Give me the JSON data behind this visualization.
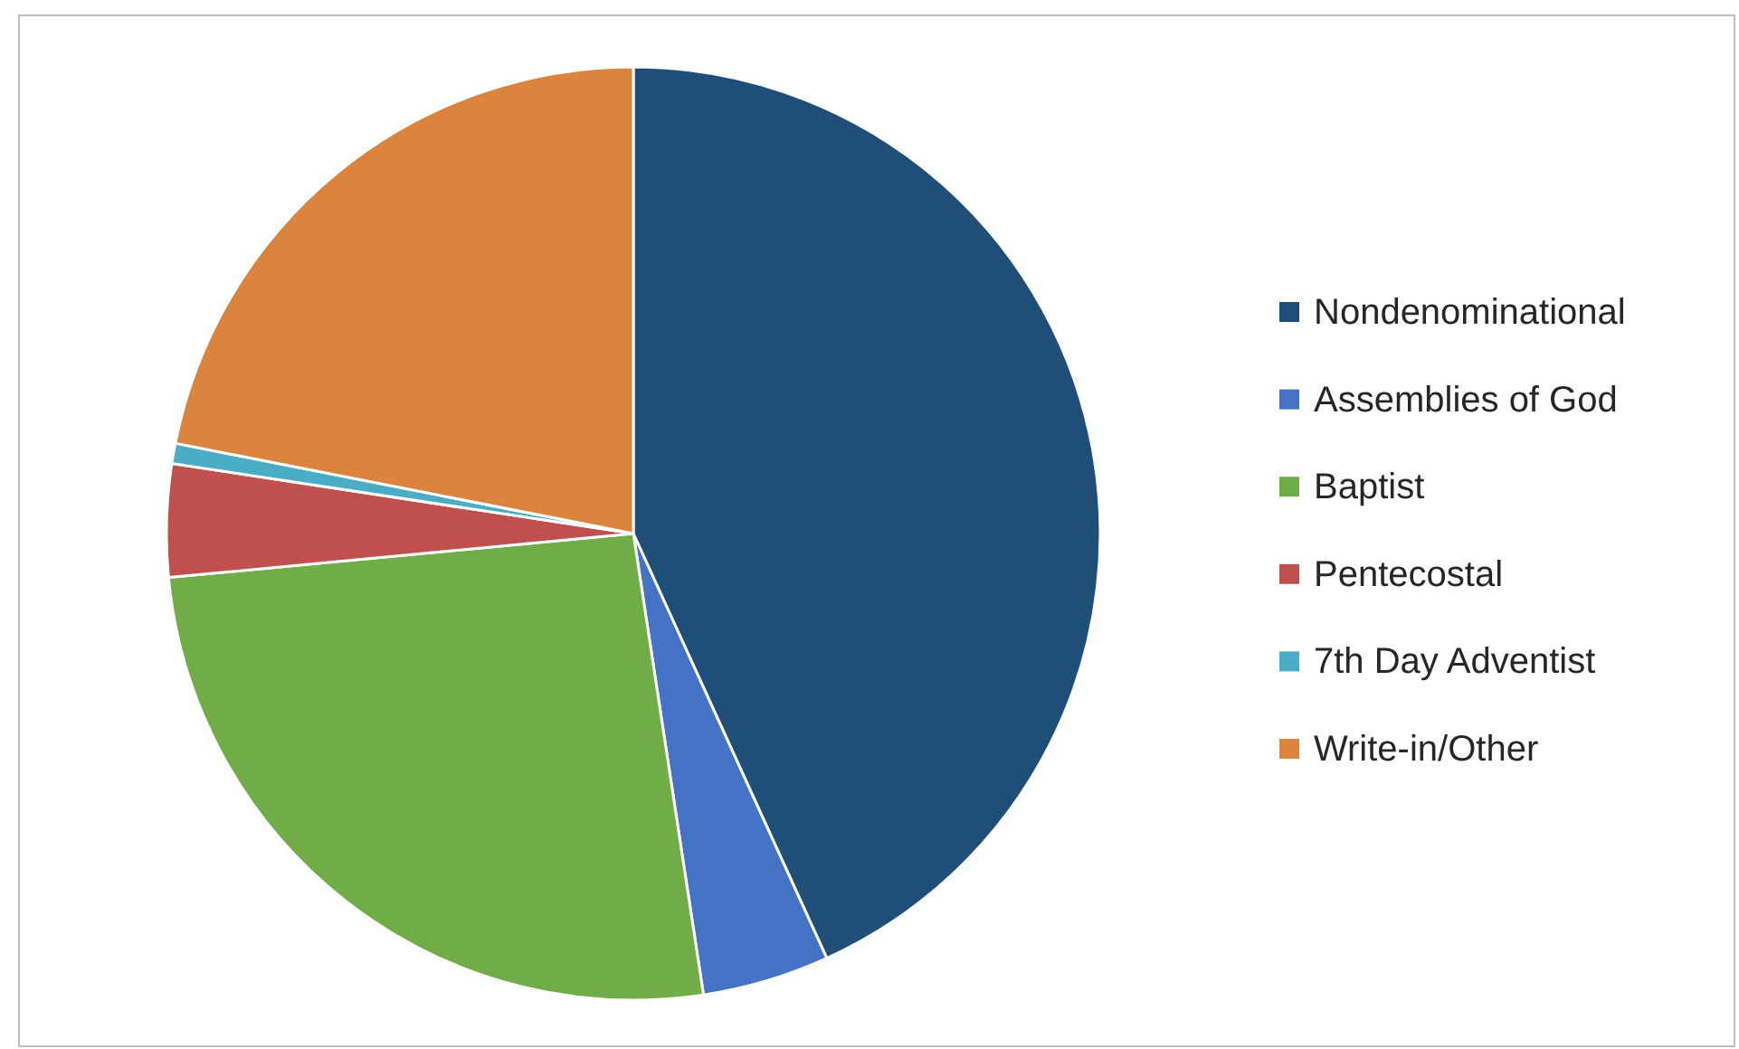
{
  "chart_data": {
    "type": "pie",
    "categories": [
      "Nondenominational",
      "Assemblies of God",
      "Baptist",
      "Pentecostal",
      "7th Day Adventist",
      "Write-in/Other"
    ],
    "values": [
      43.2,
      4.4,
      25.9,
      3.9,
      0.7,
      21.9
    ],
    "colors": [
      "#1f4e79",
      "#4472c4",
      "#70ad47",
      "#c0504d",
      "#4bacc6",
      "#db843d"
    ],
    "legend": "right"
  }
}
